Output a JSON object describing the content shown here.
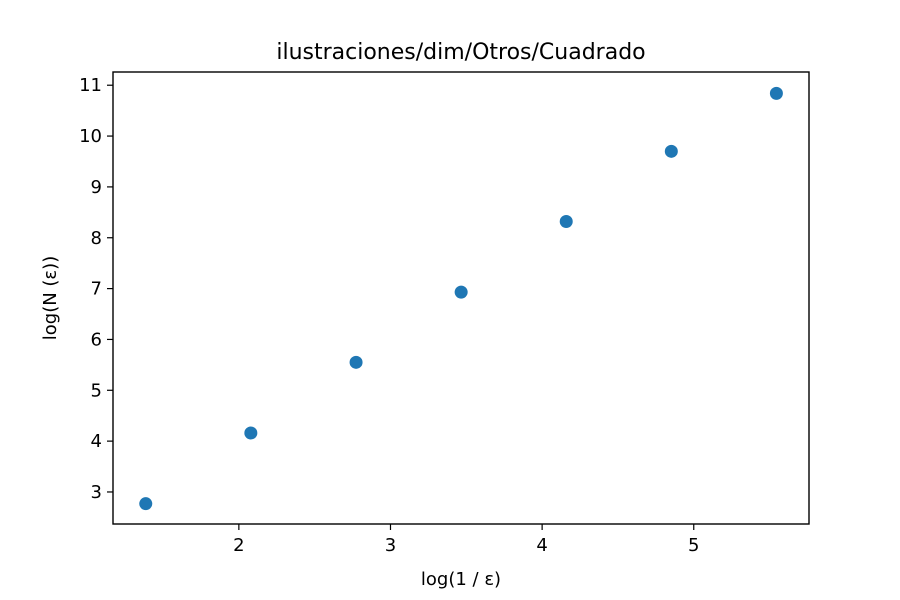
{
  "chart_data": {
    "type": "scatter",
    "title": "ilustraciones/dim/Otros/Cuadrado",
    "xlabel": "log(1 / ε)",
    "ylabel": "log(N (ε))",
    "xlim": [
      1.17,
      5.76
    ],
    "ylim": [
      2.37,
      11.26
    ],
    "xticks": [
      2,
      3,
      4,
      5
    ],
    "yticks": [
      3,
      4,
      5,
      6,
      7,
      8,
      9,
      10,
      11
    ],
    "grid": false,
    "series": [
      {
        "color": "#1f77b4",
        "points": [
          {
            "x": 1.386,
            "y": 2.77
          },
          {
            "x": 2.079,
            "y": 4.16
          },
          {
            "x": 2.773,
            "y": 5.55
          },
          {
            "x": 3.466,
            "y": 6.93
          },
          {
            "x": 4.159,
            "y": 8.32
          },
          {
            "x": 4.852,
            "y": 9.7
          },
          {
            "x": 5.545,
            "y": 10.84
          }
        ]
      }
    ]
  }
}
